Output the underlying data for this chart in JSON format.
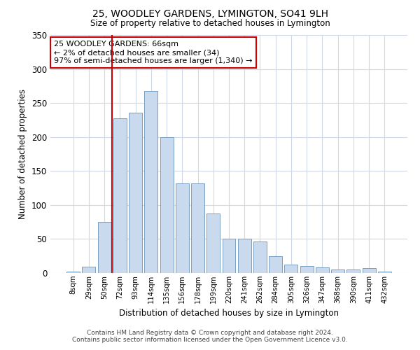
{
  "title": "25, WOODLEY GARDENS, LYMINGTON, SO41 9LH",
  "subtitle": "Size of property relative to detached houses in Lymington",
  "xlabel": "Distribution of detached houses by size in Lymington",
  "ylabel": "Number of detached properties",
  "bar_color": "#c9d9ee",
  "bar_edge_color": "#7a9fc0",
  "categories": [
    "8sqm",
    "29sqm",
    "50sqm",
    "72sqm",
    "93sqm",
    "114sqm",
    "135sqm",
    "156sqm",
    "178sqm",
    "199sqm",
    "220sqm",
    "241sqm",
    "262sqm",
    "284sqm",
    "305sqm",
    "326sqm",
    "347sqm",
    "368sqm",
    "390sqm",
    "411sqm",
    "432sqm"
  ],
  "values": [
    2,
    9,
    75,
    228,
    236,
    268,
    200,
    132,
    132,
    87,
    50,
    50,
    46,
    25,
    12,
    10,
    8,
    5,
    5,
    7,
    2
  ],
  "ylim": [
    0,
    350
  ],
  "yticks": [
    0,
    50,
    100,
    150,
    200,
    250,
    300,
    350
  ],
  "vline_x": 2.5,
  "vline_color": "#cc0000",
  "annotation_text": "25 WOODLEY GARDENS: 66sqm\n← 2% of detached houses are smaller (34)\n97% of semi-detached houses are larger (1,340) →",
  "annotation_box_color": "#ffffff",
  "annotation_box_edge_color": "#cc0000",
  "footer_text": "Contains HM Land Registry data © Crown copyright and database right 2024.\nContains public sector information licensed under the Open Government Licence v3.0.",
  "background_color": "#ffffff",
  "grid_color": "#d0d8e8"
}
